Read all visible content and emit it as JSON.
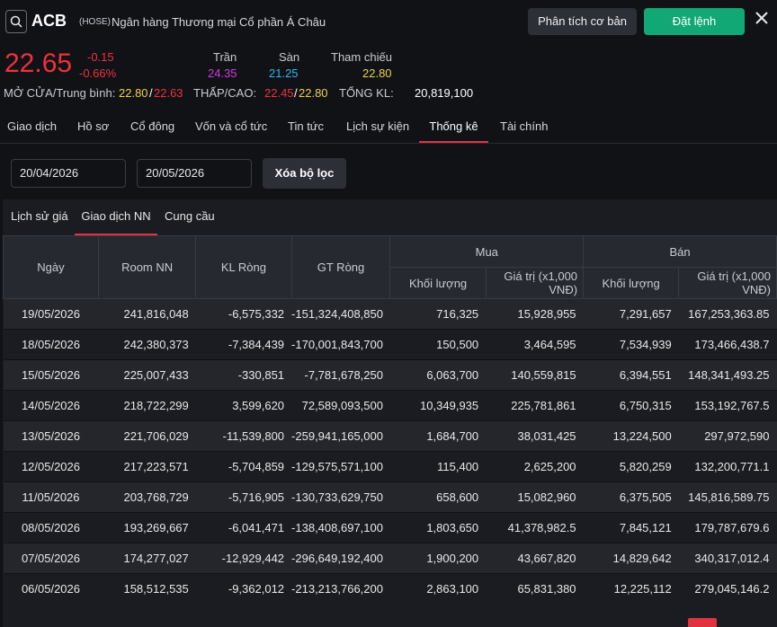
{
  "header": {
    "ticker": "ACB",
    "exchange": "(HOSE)",
    "company": "Ngân hàng Thương mại Cổ phần Á Châu",
    "analysis_button": "Phân tích cơ bản",
    "order_button": "Đặt lệnh"
  },
  "quote": {
    "price": "22.65",
    "change": "-0.15",
    "change_pct": "-0.66%",
    "ceiling_label": "Trần",
    "ceiling": "24.35",
    "floor_label": "Sàn",
    "floor": "21.25",
    "ref_label": "Tham chiếu",
    "ref": "22.80",
    "open_avg_label": "MỞ CỬA/Trung bình:",
    "open": "22.80",
    "avg": "22.63",
    "low_high_label": "THẤP/CAO:",
    "low": "22.45",
    "high": "22.80",
    "volume_label": "TỔNG KL:",
    "volume": "20,819,100",
    "sep": "/"
  },
  "tabs": [
    "Giao dịch",
    "Hồ sơ",
    "Cổ đông",
    "Vốn và cổ tức",
    "Tin tức",
    "Lịch sự kiện",
    "Thống kê",
    "Tài chính"
  ],
  "filter": {
    "from_date": "20/04/2026",
    "to_date": "20/05/2026",
    "clear_button": "Xóa bộ lọc"
  },
  "subtabs": [
    "Lịch sử giá",
    "Giao dịch NN",
    "Cung cầu"
  ],
  "table": {
    "headers": {
      "date": "Ngày",
      "room": "Room NN",
      "net_vol": "KL Ròng",
      "net_val": "GT Ròng",
      "buy": "Mua",
      "sell": "Bán",
      "buy_vol": "Khối lượng",
      "buy_val": "Giá trị (x1,000 VNĐ)",
      "sell_vol": "Khối lượng",
      "sell_val": "Giá trị (x1,000 VNĐ)"
    },
    "rows": [
      [
        "19/05/2026",
        "241,816,048",
        "-6,575,332",
        "-151,324,408,850",
        "716,325",
        "15,928,955",
        "7,291,657",
        "167,253,363.85"
      ],
      [
        "18/05/2026",
        "242,380,373",
        "-7,384,439",
        "-170,001,843,700",
        "150,500",
        "3,464,595",
        "7,534,939",
        "173,466,438.7"
      ],
      [
        "15/05/2026",
        "225,007,433",
        "-330,851",
        "-7,781,678,250",
        "6,063,700",
        "140,559,815",
        "6,394,551",
        "148,341,493.25"
      ],
      [
        "14/05/2026",
        "218,722,299",
        "3,599,620",
        "72,589,093,500",
        "10,349,935",
        "225,781,861",
        "6,750,315",
        "153,192,767.5"
      ],
      [
        "13/05/2026",
        "221,706,029",
        "-11,539,800",
        "-259,941,165,000",
        "1,684,700",
        "38,031,425",
        "13,224,500",
        "297,972,590"
      ],
      [
        "12/05/2026",
        "217,223,571",
        "-5,704,859",
        "-129,575,571,100",
        "115,400",
        "2,625,200",
        "5,820,259",
        "132,200,771.1"
      ],
      [
        "11/05/2026",
        "203,768,729",
        "-5,716,905",
        "-130,733,629,750",
        "658,600",
        "15,082,960",
        "6,375,505",
        "145,816,589.75"
      ],
      [
        "08/05/2026",
        "193,269,667",
        "-6,041,471",
        "-138,408,697,100",
        "1,803,650",
        "41,378,982.5",
        "7,845,121",
        "179,787,679.6"
      ],
      [
        "07/05/2026",
        "174,277,027",
        "-12,929,442",
        "-296,649,192,400",
        "1,900,200",
        "43,667,820",
        "14,829,642",
        "340,317,012.4"
      ],
      [
        "06/05/2026",
        "158,512,535",
        "-9,362,012",
        "-213,213,766,200",
        "2,863,100",
        "65,831,380",
        "12,225,112",
        "279,045,146.2"
      ]
    ]
  },
  "colors": {
    "down": "#f0303f",
    "ceiling": "#d03ce0",
    "floor": "#2fb7f0",
    "ref": "#e6d44a",
    "accent_green": "#12a876"
  }
}
